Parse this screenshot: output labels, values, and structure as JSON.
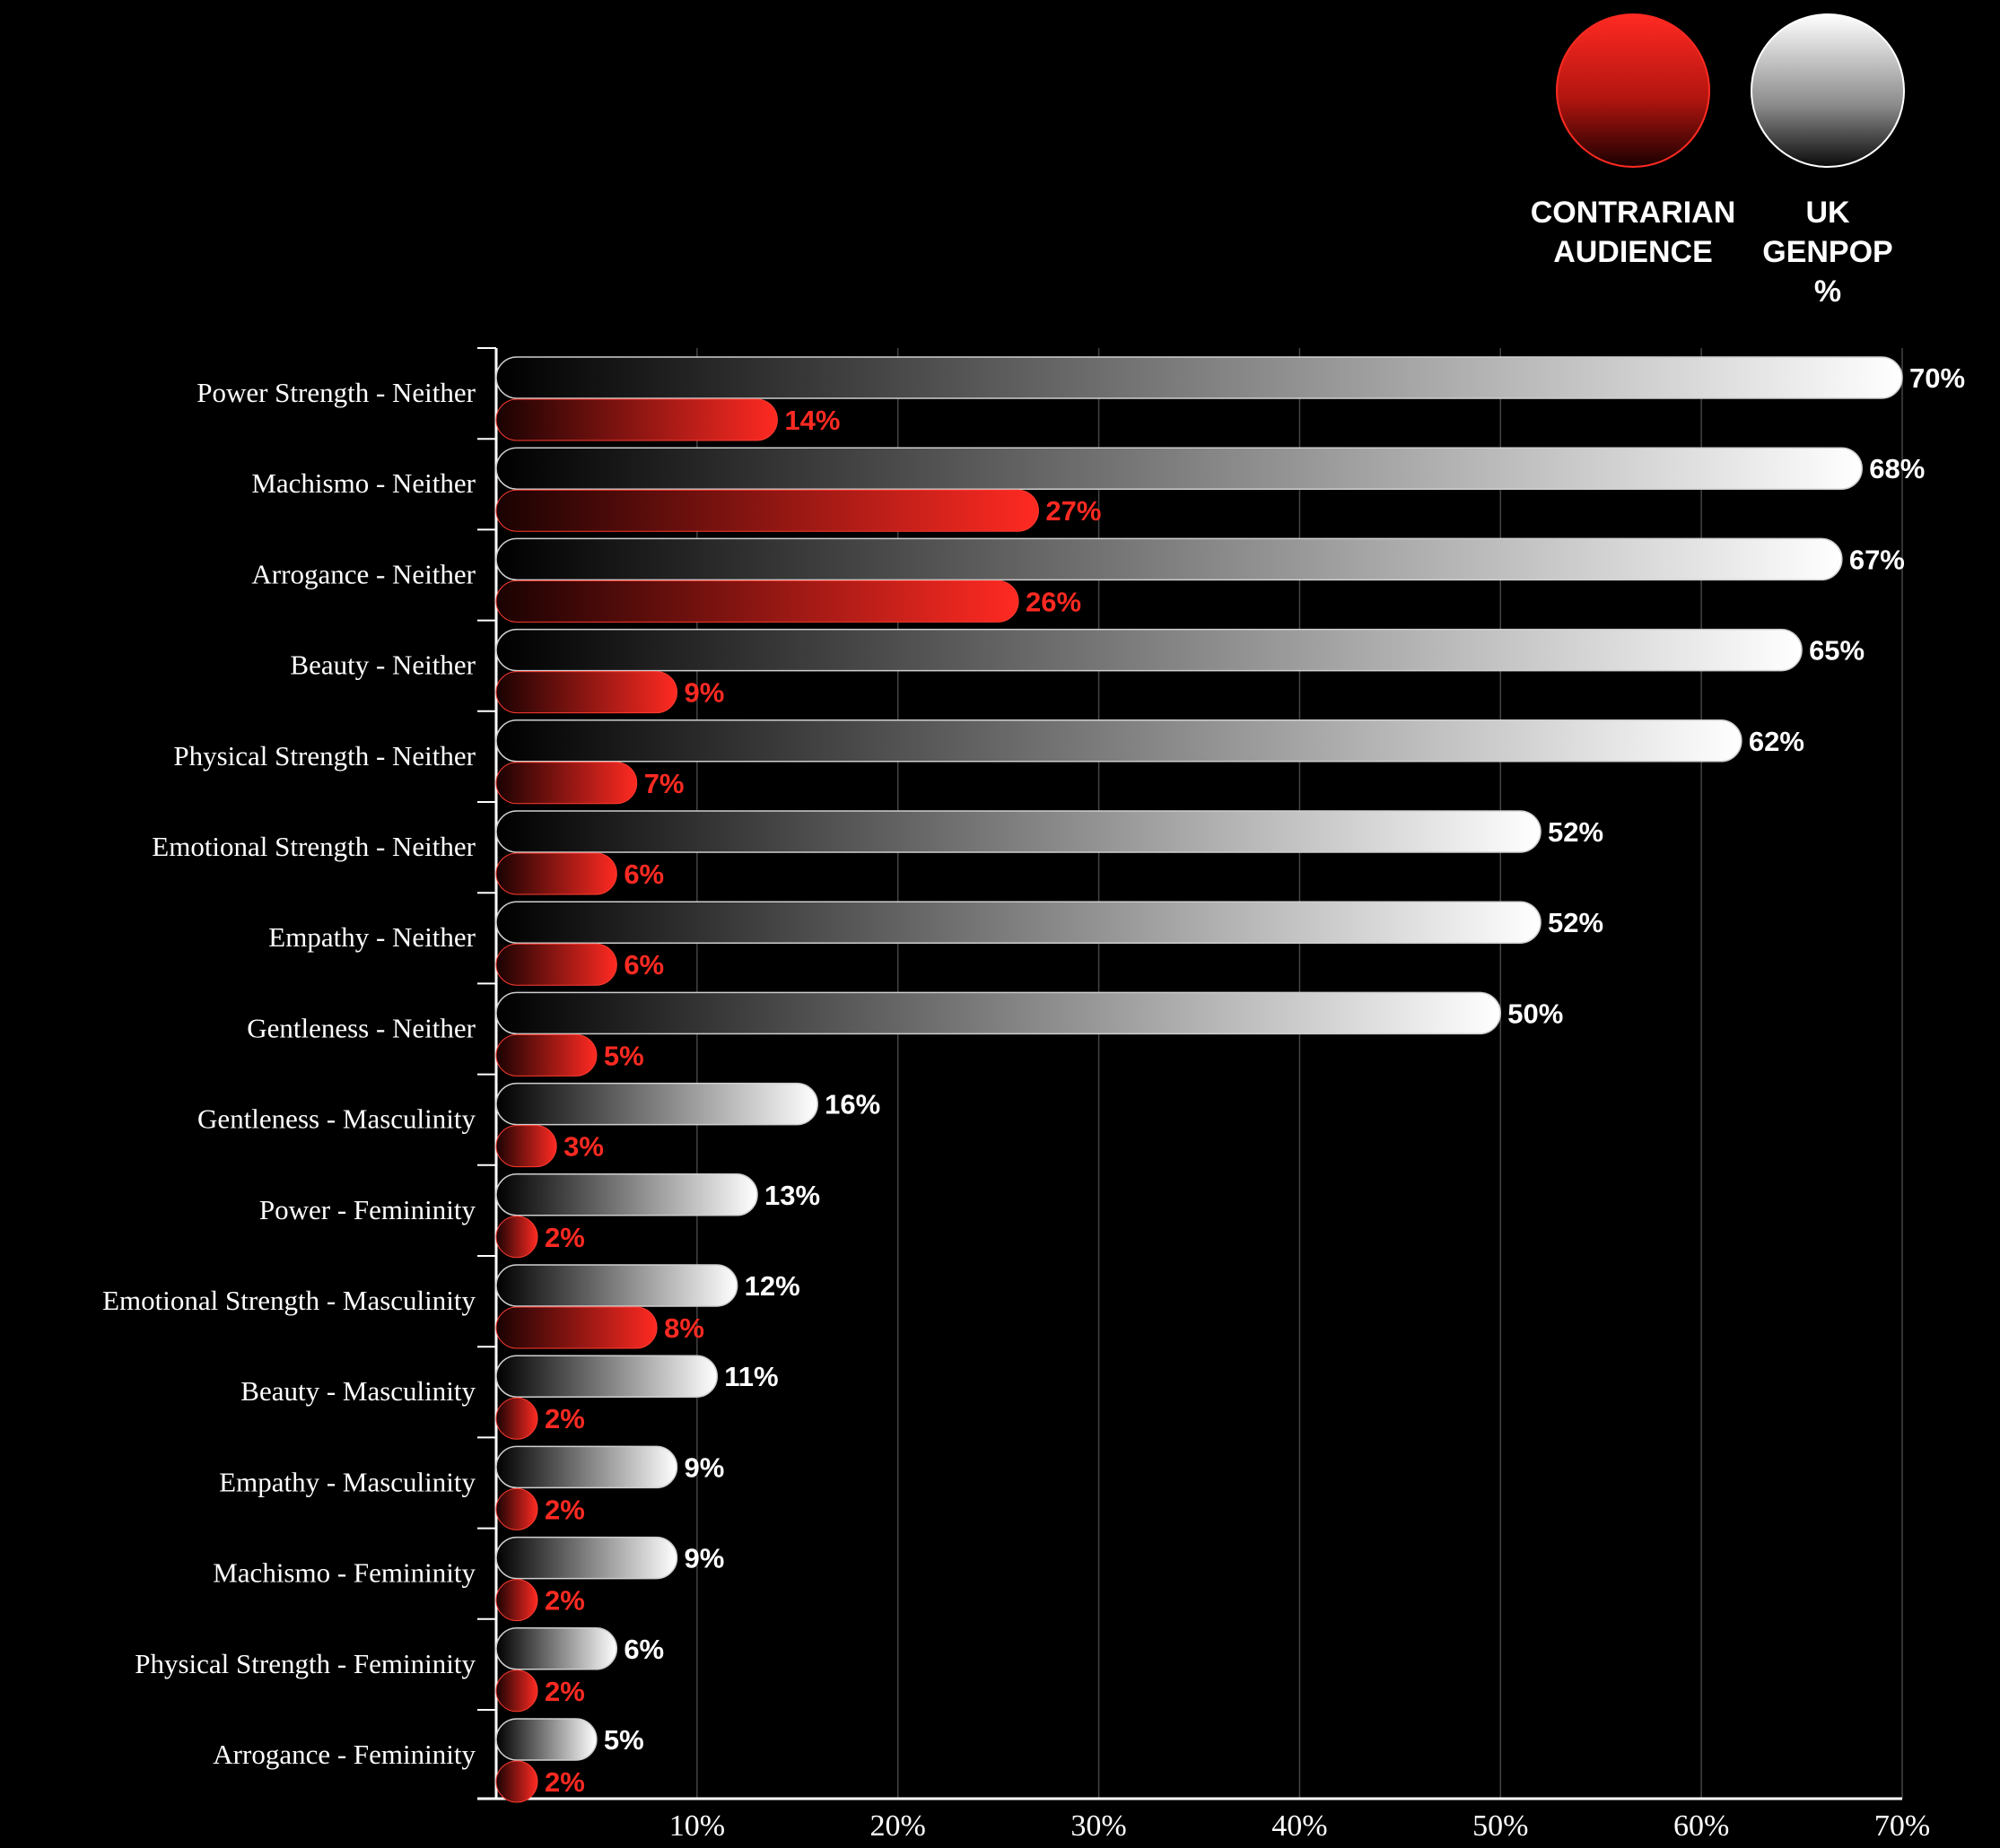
{
  "chart_data": {
    "type": "bar",
    "orientation": "horizontal",
    "categories": [
      "Power Strength - Neither",
      "Machismo - Neither",
      "Arrogance - Neither",
      "Beauty - Neither",
      "Physical Strength - Neither",
      "Emotional Strength - Neither",
      "Empathy - Neither",
      "Gentleness - Neither",
      "Gentleness - Masculinity",
      "Power - Femininity",
      "Emotional Strength - Masculinity",
      "Beauty - Masculinity",
      "Empathy - Masculinity",
      "Machismo - Femininity",
      "Physical Strength - Femininity",
      "Arrogance - Femininity"
    ],
    "series": [
      {
        "name": "UK GENPOP %",
        "values": [
          70,
          68,
          67,
          65,
          62,
          52,
          52,
          50,
          16,
          13,
          12,
          11,
          9,
          9,
          6,
          5
        ],
        "labels": [
          "70%",
          "68%",
          "67%",
          "65%",
          "62%",
          "52%",
          "52%",
          "50%",
          "16%",
          "13%",
          "12%",
          "11%",
          "9%",
          "9%",
          "6%",
          "5%"
        ],
        "color": "#ffffff"
      },
      {
        "name": "CONTRARIAN AUDIENCE",
        "values": [
          14,
          27,
          26,
          9,
          7,
          6,
          6,
          5,
          3,
          2,
          8,
          2,
          2,
          2,
          2,
          2
        ],
        "labels": [
          "14%",
          "27%",
          "26%",
          "9%",
          "7%",
          "6%",
          "6%",
          "5%",
          "3%",
          "2%",
          "8%",
          "2%",
          "2%",
          "2%",
          "2%",
          "2%"
        ],
        "color": "#ff2a22"
      }
    ],
    "xlim": [
      0,
      70
    ],
    "xticks": [
      10,
      20,
      30,
      40,
      50,
      60,
      70
    ],
    "xtick_labels": [
      "10%",
      "20%",
      "30%",
      "40%",
      "50%",
      "60%",
      "70%"
    ],
    "grid": true,
    "legend_position": "top-right",
    "legend": [
      {
        "lines": [
          "CONTRARIAN",
          "AUDIENCE"
        ],
        "color": "#ff2a22"
      },
      {
        "lines": [
          "UK",
          "GENPOP",
          "%"
        ],
        "color": "#ffffff"
      }
    ],
    "background": "#000000"
  }
}
